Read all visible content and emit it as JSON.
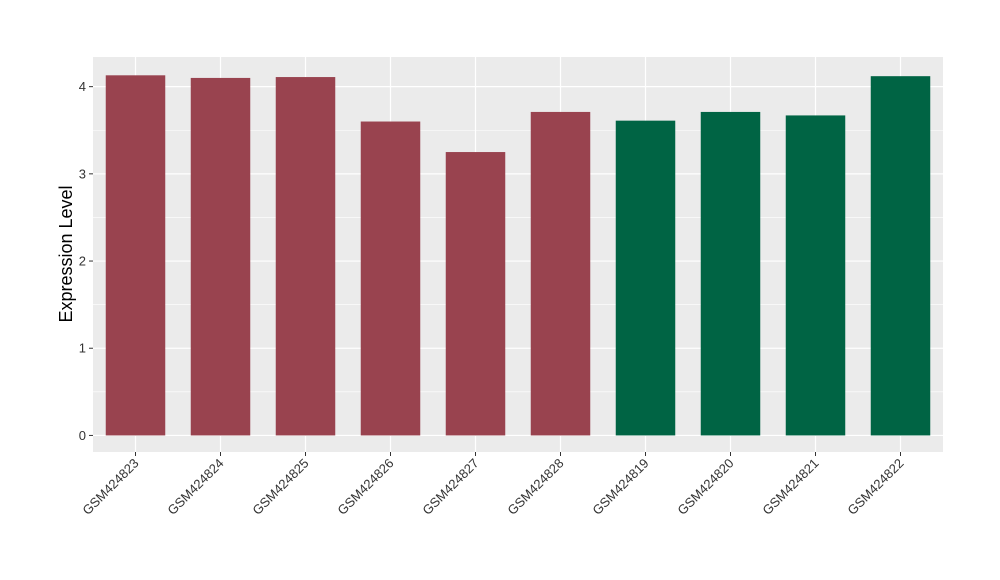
{
  "chart_data": {
    "type": "bar",
    "title": "",
    "xlabel": "",
    "ylabel": "Expression Level",
    "categories": [
      "GSM424823",
      "GSM424824",
      "GSM424825",
      "GSM424826",
      "GSM424827",
      "GSM424828",
      "GSM424819",
      "GSM424820",
      "GSM424821",
      "GSM424822"
    ],
    "values": [
      4.13,
      4.1,
      4.11,
      3.6,
      3.25,
      3.71,
      3.61,
      3.71,
      3.67,
      4.12
    ],
    "bar_colors": [
      "#99434f",
      "#99434f",
      "#99434f",
      "#99434f",
      "#99434f",
      "#99434f",
      "#006444",
      "#006444",
      "#006444",
      "#006444"
    ],
    "ylim": [
      -0.19,
      4.34
    ],
    "yticks": [
      0,
      1,
      2,
      3,
      4
    ],
    "grid": true,
    "panel_background": "#ebebeb",
    "grid_color": "#ffffff",
    "legend": "none"
  }
}
